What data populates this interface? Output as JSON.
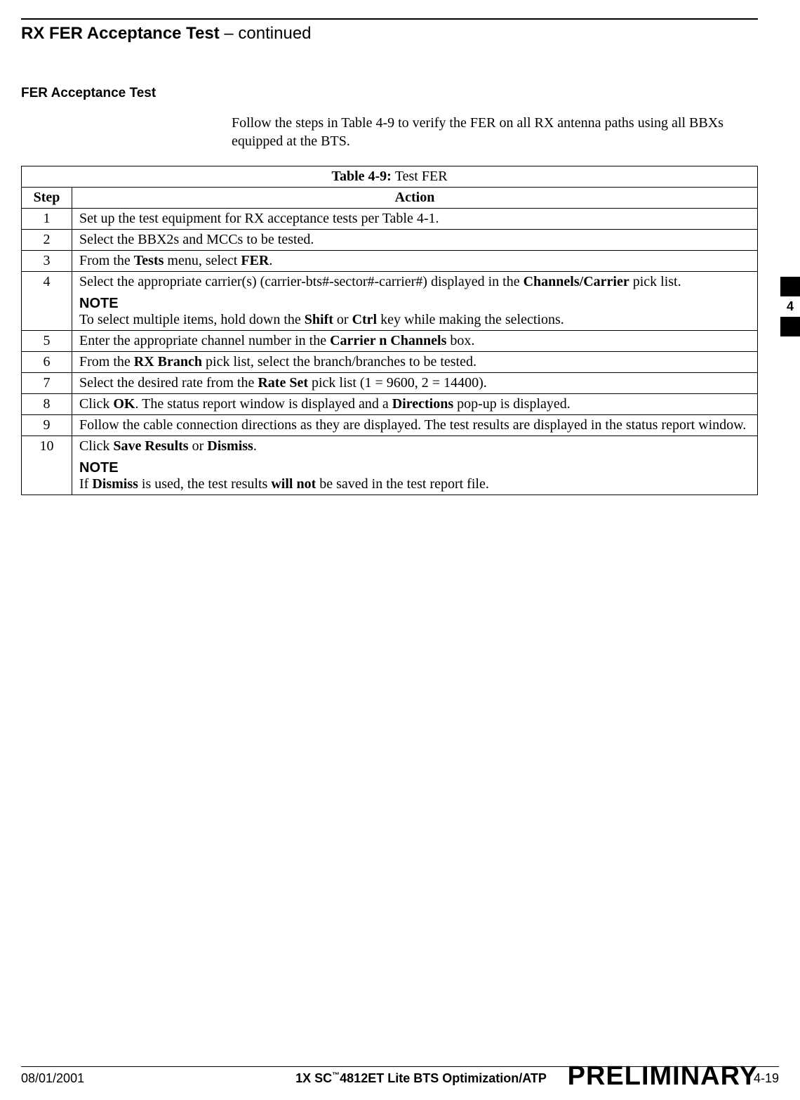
{
  "header": {
    "title_bold": "RX FER Acceptance Test",
    "title_suffix": " – continued"
  },
  "section_heading": "FER Acceptance Test",
  "intro": "Follow the steps in Table 4-9 to verify the FER on all RX antenna paths using all BBXs equipped at the BTS.",
  "table": {
    "caption_prefix": "Table 4-9: ",
    "caption_text": "Test FER",
    "col_step": "Step",
    "col_action": "Action",
    "rows": {
      "r1_step": "1",
      "r1_action": "Set up the test equipment for RX acceptance tests per Table 4-1.",
      "r2_step": "2",
      "r2_action": "Select the BBX2s and MCCs to be tested.",
      "r3_step": "3",
      "r3_a": "From the ",
      "r3_b": "Tests",
      "r3_c": " menu, select ",
      "r3_d": "FER",
      "r3_e": ".",
      "r4_step": "4",
      "r4_a": "Select the appropriate carrier(s) (carrier-bts#-sector#-carrier#) displayed in the ",
      "r4_b": "Channels/Carrier",
      "r4_c": " pick list.",
      "r4_note_label": "NOTE",
      "r4_d": "To select multiple items, hold down the ",
      "r4_e": "Shift",
      "r4_f": " or ",
      "r4_g": "Ctrl",
      "r4_h": " key while making the selections.",
      "r5_step": "5",
      "r5_a": "Enter the appropriate channel number in the ",
      "r5_b": "Carrier n Channels",
      "r5_c": " box.",
      "r6_step": "6",
      "r6_a": "From the ",
      "r6_b": "RX Branch",
      "r6_c": " pick list, select the branch/branches to be tested.",
      "r7_step": "7",
      "r7_a": "Select the desired rate from the ",
      "r7_b": "Rate Set",
      "r7_c": " pick list (1 = 9600, 2 = 14400).",
      "r8_step": "8",
      "r8_a": "Click ",
      "r8_b": "OK",
      "r8_c": ". The status report window is displayed and a ",
      "r8_d": "Directions",
      "r8_e": " pop-up is displayed.",
      "r9_step": "9",
      "r9_action": "Follow the cable connection directions as they are displayed. The test results are displayed in the status report window.",
      "r10_step": "10",
      "r10_a": "Click ",
      "r10_b": "Save Results",
      "r10_c": " or ",
      "r10_d": "Dismiss",
      "r10_e": ".",
      "r10_note_label": "NOTE",
      "r10_f": "If ",
      "r10_g": "Dismiss",
      "r10_h": " is used, the test results ",
      "r10_i": "will not",
      "r10_j": " be saved in the test report file."
    }
  },
  "side_tab": "4",
  "footer": {
    "date": "08/01/2001",
    "center_a": "1X SC",
    "center_tm": "™",
    "center_b": "4812ET Lite BTS Optimization/ATP",
    "page_num": "4-19",
    "watermark": "PRELIMINARY"
  }
}
